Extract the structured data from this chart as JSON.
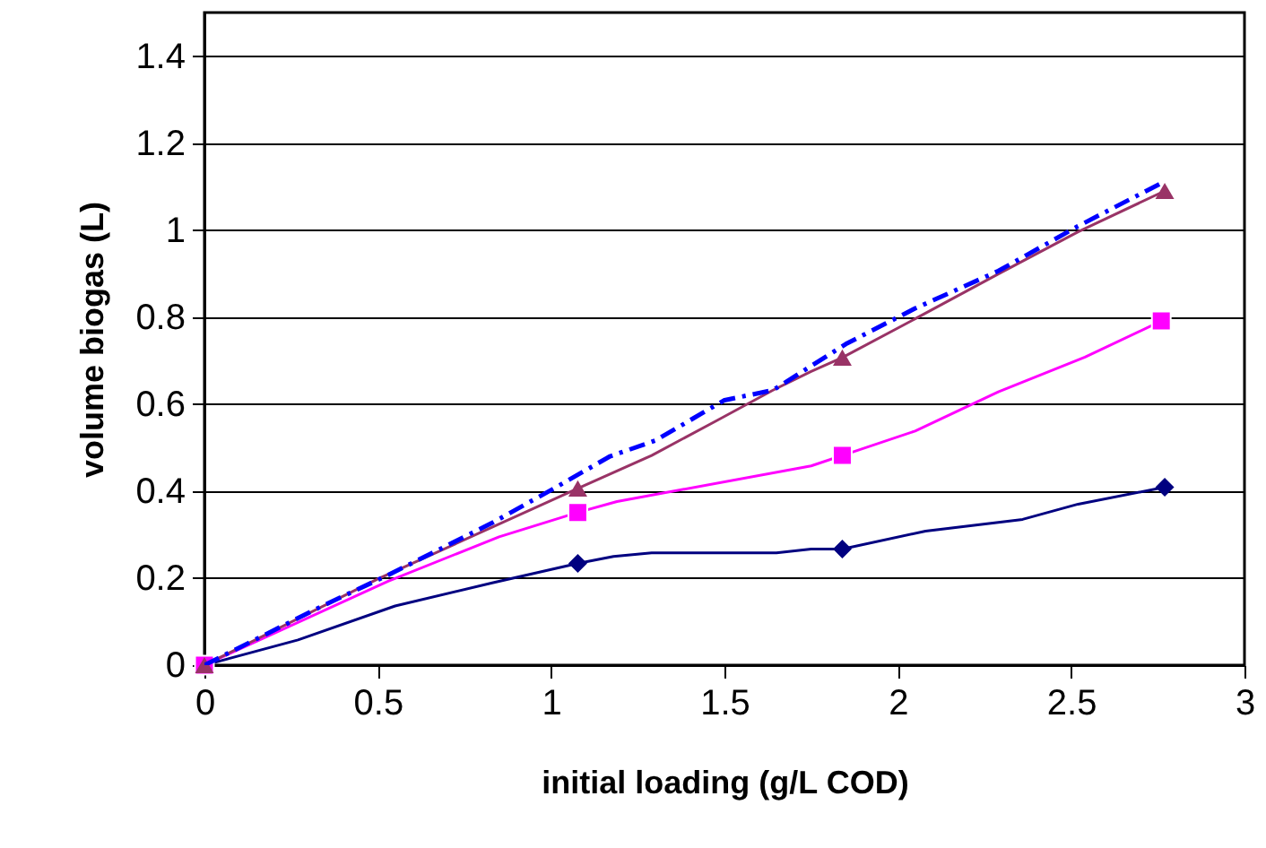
{
  "chart_data": {
    "type": "line",
    "xlabel": "initial loading (g/L COD)",
    "ylabel": "volume biogas (L)",
    "xlim": [
      0,
      3
    ],
    "xticks": [
      0,
      0.5,
      1,
      1.5,
      2,
      2.5,
      3
    ],
    "ylim": [
      0,
      1.5
    ],
    "yticks": [
      0,
      0.2,
      0.4,
      0.6,
      0.8,
      1,
      1.2,
      1.4
    ],
    "grid": "y",
    "series": [
      {
        "color": "#000080",
        "x": [
          0,
          0.27,
          0.55,
          0.83,
          1.077,
          1.18,
          1.29,
          1.65,
          1.75,
          1.84,
          2.08,
          2.36,
          2.52,
          2.77
        ],
        "values": [
          0,
          0.058,
          0.136,
          0.189,
          0.234,
          0.25,
          0.258,
          0.258,
          0.267,
          0.267,
          0.308,
          0.335,
          0.37,
          0.409
        ]
      },
      {
        "type": "scatter",
        "color": "#000080",
        "marker": "diamond",
        "x": [
          1.077,
          1.84,
          2.77
        ],
        "values": [
          0.234,
          0.267,
          0.409
        ]
      },
      {
        "color": "#ff00ff",
        "x": [
          0,
          0.53,
          0.85,
          1.077,
          1.19,
          1.75,
          1.84,
          2.05,
          2.29,
          2.54,
          2.76
        ],
        "values": [
          0,
          0.193,
          0.295,
          0.351,
          0.376,
          0.458,
          0.482,
          0.538,
          0.628,
          0.708,
          0.791
        ]
      },
      {
        "type": "scatter",
        "color": "#ff00ff",
        "marker": "square",
        "x": [
          0,
          1.077,
          1.84,
          2.76
        ],
        "values": [
          0,
          0.351,
          0.482,
          0.791
        ]
      },
      {
        "color": "#993366",
        "x": [
          0,
          0.5,
          1.077,
          1.29,
          1.48,
          1.64,
          1.75,
          1.84,
          2.05,
          2.29,
          2.52,
          2.77
        ],
        "values": [
          0,
          0.198,
          0.406,
          0.482,
          0.563,
          0.632,
          0.675,
          0.707,
          0.796,
          0.899,
          0.996,
          1.09
        ]
      },
      {
        "type": "scatter",
        "color": "#993366",
        "marker": "triangle",
        "x": [
          0,
          1.077,
          1.84,
          2.77
        ],
        "values": [
          0,
          0.406,
          0.707,
          1.09
        ]
      },
      {
        "color": "#0000ff",
        "line_style": "dashed",
        "x": [
          0,
          0.34,
          0.53,
          0.83,
          1.01,
          1.17,
          1.3,
          1.5,
          1.64,
          1.85,
          2.05,
          2.29,
          2.52,
          2.77
        ],
        "values": [
          0,
          0.136,
          0.207,
          0.327,
          0.407,
          0.48,
          0.516,
          0.609,
          0.632,
          0.738,
          0.82,
          0.906,
          1.009,
          1.112
        ]
      }
    ]
  }
}
